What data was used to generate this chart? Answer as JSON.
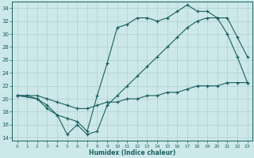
{
  "bg_color": "#cde8e8",
  "grid_color": "#b0cfcf",
  "line_color": "#1a6060",
  "xlabel": "Humidex (Indice chaleur)",
  "xlim": [
    -0.5,
    23.5
  ],
  "ylim": [
    13.5,
    35.0
  ],
  "yticks": [
    14,
    16,
    18,
    20,
    22,
    24,
    26,
    28,
    30,
    32,
    34
  ],
  "xticks": [
    0,
    1,
    2,
    3,
    4,
    5,
    6,
    7,
    8,
    9,
    10,
    11,
    12,
    13,
    14,
    15,
    16,
    17,
    18,
    19,
    20,
    21,
    22,
    23
  ],
  "curve1_x": [
    0,
    1,
    2,
    3,
    4,
    5,
    6,
    7,
    8,
    9,
    10,
    11,
    12,
    13,
    14,
    15,
    16,
    17,
    18,
    19,
    20,
    21,
    22,
    23
  ],
  "curve1_y": [
    20.5,
    20.5,
    20.0,
    19.0,
    17.5,
    17.0,
    16.5,
    15.0,
    20.5,
    25.5,
    31.0,
    31.5,
    32.5,
    32.5,
    32.0,
    32.5,
    33.5,
    34.5,
    33.5,
    33.5,
    32.5,
    30.0,
    26.5,
    22.5
  ],
  "curve2_x": [
    0,
    2,
    3,
    4,
    5,
    6,
    7,
    8,
    9,
    10,
    11,
    12,
    13,
    14,
    15,
    16,
    17,
    18,
    19,
    20,
    21,
    22,
    23
  ],
  "curve2_y": [
    20.5,
    20.0,
    18.5,
    17.5,
    14.5,
    16.0,
    14.5,
    15.0,
    19.0,
    20.5,
    22.0,
    23.5,
    25.0,
    26.5,
    28.0,
    29.5,
    31.0,
    32.0,
    32.5,
    32.5,
    32.5,
    29.5,
    26.5
  ],
  "curve3_x": [
    0,
    1,
    2,
    3,
    4,
    5,
    6,
    7,
    8,
    9,
    10,
    11,
    12,
    13,
    14,
    15,
    16,
    17,
    18,
    19,
    20,
    21,
    22,
    23
  ],
  "curve3_y": [
    20.5,
    20.5,
    20.5,
    20.0,
    19.5,
    19.0,
    18.5,
    18.5,
    19.0,
    19.5,
    19.5,
    20.0,
    20.0,
    20.5,
    20.5,
    21.0,
    21.0,
    21.5,
    22.0,
    22.0,
    22.0,
    22.5,
    22.5,
    22.5
  ]
}
